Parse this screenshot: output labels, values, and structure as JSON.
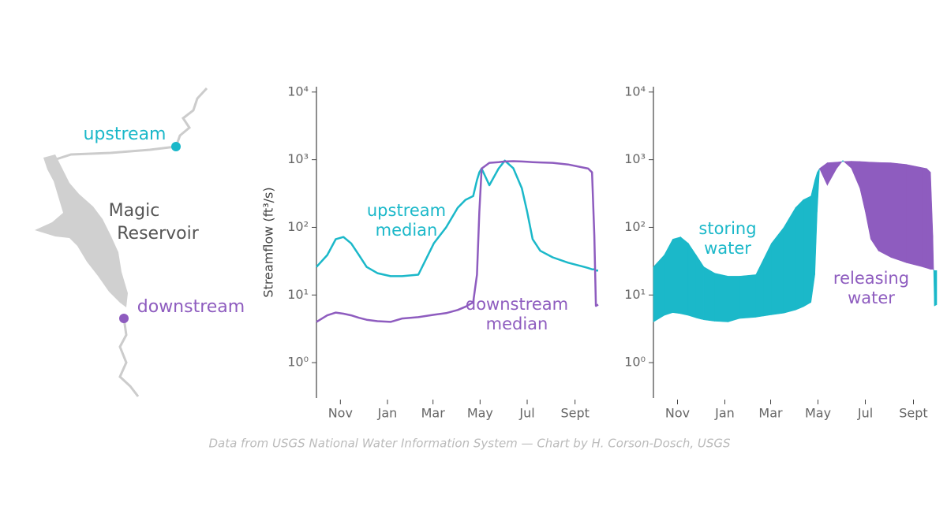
{
  "map": {
    "upstream_label": "upstream",
    "reservoir_label": [
      "Magic",
      "Reservoir"
    ],
    "downstream_label": "downstream",
    "upstream_color": "#1bb8c9",
    "downstream_color": "#8e5cbf"
  },
  "caption": "Data from USGS National Water Information System — Chart by H. Corson-Dosch, USGS",
  "chart_data": [
    {
      "type": "line",
      "y_label": "Streamflow (ft³/s)",
      "log_y": true,
      "ylim": [
        0.3,
        12000
      ],
      "yticks": [
        {
          "value": 1,
          "label": "10⁰"
        },
        {
          "value": 10,
          "label": "10¹"
        },
        {
          "value": 100,
          "label": "10²"
        },
        {
          "value": 1000,
          "label": "10³"
        },
        {
          "value": 10000,
          "label": "10⁴"
        }
      ],
      "xlim": [
        0,
        365
      ],
      "xticks": [
        {
          "value": 31,
          "label": "Nov"
        },
        {
          "value": 92,
          "label": "Jan"
        },
        {
          "value": 151,
          "label": "Mar"
        },
        {
          "value": 212,
          "label": "May"
        },
        {
          "value": 273,
          "label": "Jul"
        },
        {
          "value": 335,
          "label": "Sept"
        }
      ],
      "x": [
        0,
        14,
        25,
        35,
        45,
        55,
        65,
        79,
        96,
        111,
        132,
        142,
        152,
        168,
        183,
        193,
        203,
        208,
        211,
        214,
        224,
        236,
        244,
        255,
        266,
        273,
        280,
        290,
        306,
        326,
        347,
        352,
        357,
        360,
        362,
        365
      ],
      "series": [
        {
          "name": "upstream median",
          "color": "#1bb8c9",
          "values": [
            26,
            39,
            67,
            72,
            58,
            39,
            26,
            21,
            19,
            19,
            20,
            34,
            58,
            100,
            195,
            255,
            290,
            500,
            650,
            740,
            420,
            740,
            970,
            750,
            380,
            170,
            67,
            45,
            36,
            30,
            26,
            25,
            24,
            24,
            23,
            23
          ]
        },
        {
          "name": "downstream median",
          "color": "#8e5cbf",
          "values": [
            4,
            5,
            5.5,
            5.3,
            5,
            4.6,
            4.3,
            4.1,
            4,
            4.5,
            4.7,
            4.9,
            5.1,
            5.4,
            6,
            6.7,
            7.8,
            20,
            170,
            740,
            900,
            920,
            940,
            950,
            940,
            930,
            920,
            910,
            900,
            850,
            760,
            740,
            650,
            76,
            6.9,
            7.2
          ]
        }
      ],
      "annotations": [
        {
          "text": [
            "upstream",
            "median"
          ],
          "color": "#1bb8c9"
        },
        {
          "text": [
            "downstream",
            "median"
          ],
          "color": "#8e5cbf"
        }
      ]
    },
    {
      "type": "difference",
      "log_y": true,
      "ylim": [
        0.3,
        12000
      ],
      "yticks": [
        {
          "value": 1,
          "label": "10⁰"
        },
        {
          "value": 10,
          "label": "10¹"
        },
        {
          "value": 100,
          "label": "10²"
        },
        {
          "value": 1000,
          "label": "10³"
        },
        {
          "value": 10000,
          "label": "10⁴"
        }
      ],
      "xlim": [
        0,
        365
      ],
      "xticks": [
        {
          "value": 31,
          "label": "Nov"
        },
        {
          "value": 92,
          "label": "Jan"
        },
        {
          "value": 151,
          "label": "Mar"
        },
        {
          "value": 212,
          "label": "May"
        },
        {
          "value": 273,
          "label": "Jul"
        },
        {
          "value": 335,
          "label": "Sept"
        }
      ],
      "x": [
        0,
        14,
        25,
        35,
        45,
        55,
        65,
        79,
        96,
        111,
        132,
        142,
        152,
        168,
        183,
        193,
        203,
        208,
        211,
        214,
        224,
        236,
        244,
        255,
        266,
        273,
        280,
        290,
        306,
        326,
        347,
        352,
        357,
        360,
        362,
        365
      ],
      "series": [
        {
          "name": "upstream median",
          "color": "#1bb8c9",
          "values": [
            26,
            39,
            67,
            72,
            58,
            39,
            26,
            21,
            19,
            19,
            20,
            34,
            58,
            100,
            195,
            255,
            290,
            500,
            650,
            740,
            420,
            740,
            970,
            750,
            380,
            170,
            67,
            45,
            36,
            30,
            26,
            25,
            24,
            24,
            23,
            23
          ]
        },
        {
          "name": "downstream median",
          "color": "#8e5cbf",
          "values": [
            4,
            5,
            5.5,
            5.3,
            5,
            4.6,
            4.3,
            4.1,
            4,
            4.5,
            4.7,
            4.9,
            5.1,
            5.4,
            6,
            6.7,
            7.8,
            20,
            170,
            740,
            900,
            920,
            940,
            950,
            940,
            930,
            920,
            910,
            900,
            850,
            760,
            740,
            650,
            76,
            6.9,
            7.2
          ]
        }
      ],
      "annotations": [
        {
          "text": [
            "storing",
            "water"
          ],
          "color": "#1bb8c9"
        },
        {
          "text": [
            "releasing",
            "water"
          ],
          "color": "#8e5cbf"
        }
      ]
    }
  ]
}
